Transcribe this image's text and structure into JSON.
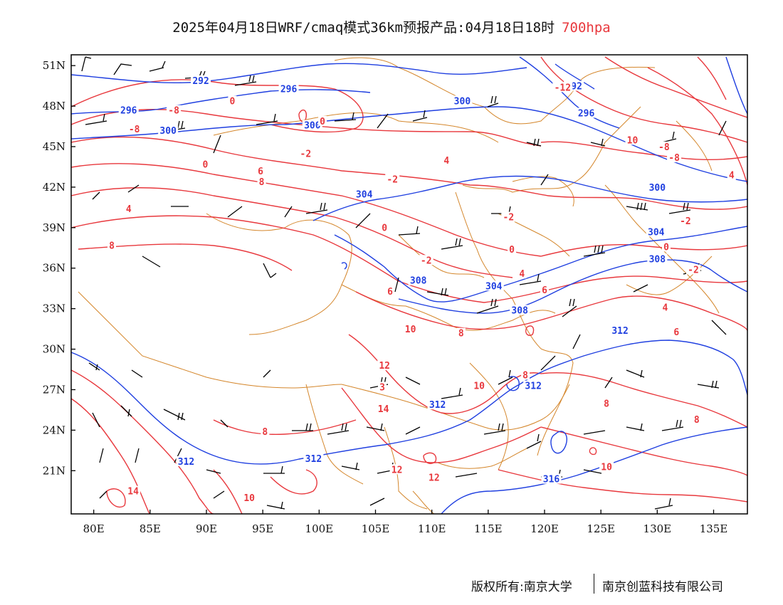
{
  "title": {
    "main": "2025年04月18日WRF/cmaq模式36km预报产品:04月18日18时",
    "level": "700hpa",
    "level_color": "#e8383d"
  },
  "axes": {
    "lon_ticks": [
      "80E",
      "85E",
      "90E",
      "95E",
      "100E",
      "105E",
      "110E",
      "115E",
      "120E",
      "125E",
      "130E",
      "135E"
    ],
    "lat_ticks": [
      "51N",
      "48N",
      "45N",
      "42N",
      "39N",
      "36N",
      "33N",
      "30N",
      "27N",
      "24N",
      "21N"
    ],
    "lon_range": [
      78,
      138
    ],
    "lat_range": [
      17.8,
      51.8
    ]
  },
  "colors": {
    "temperature": "#e8383d",
    "geopotential": "#1f3fe0",
    "border": "#d4862b",
    "wind": "#000000",
    "frame": "#000000"
  },
  "legend_note": "",
  "geopotential_labels": [
    {
      "text": "292",
      "lon": 89.5,
      "lat": 49.8
    },
    {
      "text": "296",
      "lon": 97.3,
      "lat": 49.2
    },
    {
      "text": "296",
      "lon": 83.1,
      "lat": 47.6
    },
    {
      "text": "300",
      "lon": 86.6,
      "lat": 46.1
    },
    {
      "text": "300",
      "lon": 99.4,
      "lat": 46.5
    },
    {
      "text": "300",
      "lon": 112.7,
      "lat": 48.3
    },
    {
      "text": "292",
      "lon": 122.6,
      "lat": 49.4
    },
    {
      "text": "296",
      "lon": 123.7,
      "lat": 47.4
    },
    {
      "text": "300",
      "lon": 130.0,
      "lat": 41.9
    },
    {
      "text": "304",
      "lon": 104.0,
      "lat": 41.4
    },
    {
      "text": "304",
      "lon": 129.9,
      "lat": 38.6
    },
    {
      "text": "308",
      "lon": 130.0,
      "lat": 36.6
    },
    {
      "text": "308",
      "lon": 108.8,
      "lat": 35.0
    },
    {
      "text": "304",
      "lon": 115.5,
      "lat": 34.6
    },
    {
      "text": "308",
      "lon": 117.8,
      "lat": 32.8
    },
    {
      "text": "312",
      "lon": 126.7,
      "lat": 31.3
    },
    {
      "text": "312",
      "lon": 119.0,
      "lat": 27.2
    },
    {
      "text": "312",
      "lon": 110.5,
      "lat": 25.8
    },
    {
      "text": "312",
      "lon": 99.5,
      "lat": 21.8
    },
    {
      "text": "312",
      "lon": 88.2,
      "lat": 21.6
    },
    {
      "text": "316",
      "lon": 120.6,
      "lat": 20.3
    }
  ],
  "temperature_labels": [
    {
      "text": "0",
      "lon": 92.3,
      "lat": 48.3
    },
    {
      "text": "-8",
      "lon": 87.1,
      "lat": 47.6
    },
    {
      "text": "-8",
      "lon": 83.6,
      "lat": 46.2
    },
    {
      "text": "0",
      "lon": 100.3,
      "lat": 46.8
    },
    {
      "text": "-12",
      "lon": 121.6,
      "lat": 49.3
    },
    {
      "text": "-2",
      "lon": 98.8,
      "lat": 44.4
    },
    {
      "text": "0",
      "lon": 89.9,
      "lat": 43.6
    },
    {
      "text": "6",
      "lon": 94.8,
      "lat": 43.1
    },
    {
      "text": "8",
      "lon": 94.9,
      "lat": 42.3
    },
    {
      "text": "4",
      "lon": 83.1,
      "lat": 40.3
    },
    {
      "text": "-2",
      "lon": 106.5,
      "lat": 42.5
    },
    {
      "text": "4",
      "lon": 111.3,
      "lat": 43.9
    },
    {
      "text": "10",
      "lon": 127.8,
      "lat": 45.4
    },
    {
      "text": "-8",
      "lon": 130.6,
      "lat": 44.9
    },
    {
      "text": "-8",
      "lon": 131.5,
      "lat": 44.1
    },
    {
      "text": "4",
      "lon": 136.6,
      "lat": 42.8
    },
    {
      "text": "-2",
      "lon": 116.8,
      "lat": 39.7
    },
    {
      "text": "0",
      "lon": 105.8,
      "lat": 38.9
    },
    {
      "text": "-2",
      "lon": 132.5,
      "lat": 39.4
    },
    {
      "text": "0",
      "lon": 117.1,
      "lat": 37.3
    },
    {
      "text": "0",
      "lon": 130.8,
      "lat": 37.5
    },
    {
      "text": "-2",
      "lon": 109.5,
      "lat": 36.5
    },
    {
      "text": "8",
      "lon": 81.6,
      "lat": 37.6
    },
    {
      "text": "-2",
      "lon": 133.2,
      "lat": 35.8
    },
    {
      "text": "4",
      "lon": 118.0,
      "lat": 35.5
    },
    {
      "text": "6",
      "lon": 106.3,
      "lat": 34.2
    },
    {
      "text": "6",
      "lon": 120.0,
      "lat": 34.3
    },
    {
      "text": "4",
      "lon": 130.7,
      "lat": 33.0
    },
    {
      "text": "10",
      "lon": 108.1,
      "lat": 31.4
    },
    {
      "text": "8",
      "lon": 112.6,
      "lat": 31.1
    },
    {
      "text": "6",
      "lon": 131.7,
      "lat": 31.2
    },
    {
      "text": "12",
      "lon": 105.8,
      "lat": 28.7
    },
    {
      "text": "3",
      "lon": 105.6,
      "lat": 27.1
    },
    {
      "text": "10",
      "lon": 114.2,
      "lat": 27.2
    },
    {
      "text": "8",
      "lon": 118.3,
      "lat": 28.0
    },
    {
      "text": "14",
      "lon": 105.7,
      "lat": 25.5
    },
    {
      "text": "8",
      "lon": 95.2,
      "lat": 23.8
    },
    {
      "text": "8",
      "lon": 125.5,
      "lat": 25.9
    },
    {
      "text": "8",
      "lon": 133.5,
      "lat": 24.7
    },
    {
      "text": "12",
      "lon": 106.9,
      "lat": 21.0
    },
    {
      "text": "12",
      "lon": 110.2,
      "lat": 20.4
    },
    {
      "text": "10",
      "lon": 125.5,
      "lat": 21.2
    },
    {
      "text": "14",
      "lon": 83.5,
      "lat": 19.4
    },
    {
      "text": "10",
      "lon": 93.8,
      "lat": 18.9
    }
  ],
  "footer": {
    "left": "版权所有:南京大学",
    "right": "南京创蓝科技有限公司"
  }
}
